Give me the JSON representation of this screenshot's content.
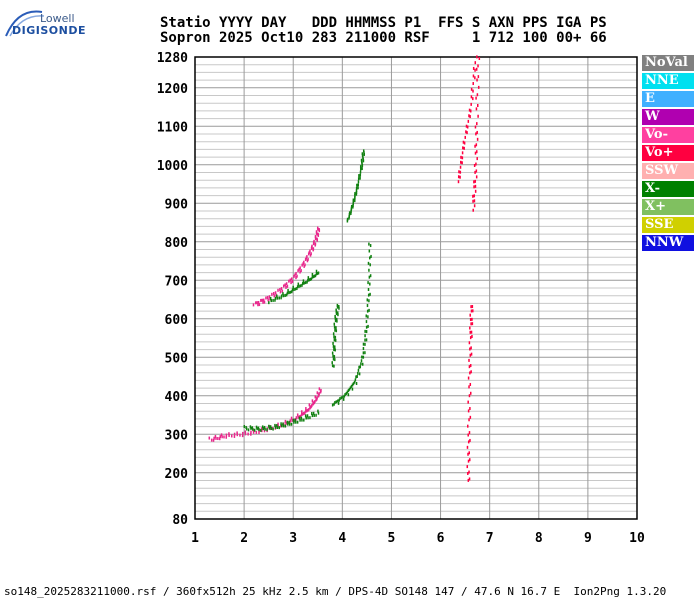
{
  "logo": {
    "top": "Lowell",
    "main": "DIGISONDE"
  },
  "header": {
    "line1": "Statio YYYY DAY   DDD HHMMSS P1  FFS S AXN PPS IGA PS",
    "line2": "Sopron 2025 Oct10 283 211000 RSF     1 712 100 00+ 66"
  },
  "legend": [
    {
      "label": "NoVal",
      "color": "#808080"
    },
    {
      "label": "NNE",
      "color": "#00e0f0"
    },
    {
      "label": "E",
      "color": "#40b0ff"
    },
    {
      "label": "W",
      "color": "#b000b0"
    },
    {
      "label": "Vo-",
      "color": "#ff40a0"
    },
    {
      "label": "Vo+",
      "color": "#ff0040"
    },
    {
      "label": "SSW",
      "color": "#ffb0b0"
    },
    {
      "label": "X-",
      "color": "#008000"
    },
    {
      "label": "X+",
      "color": "#80c060"
    },
    {
      "label": "SSE",
      "color": "#d0d000"
    },
    {
      "label": "NNW",
      "color": "#1010e0"
    }
  ],
  "footer": "so148_2025283211000.rsf / 360fx512h 25 kHz 2.5 km / DPS-4D SO148 147 / 47.6 N 16.7 E  Ion2Png 1.3.20",
  "chart_data": {
    "type": "scatter",
    "xlim": [
      1,
      10
    ],
    "ylim": [
      80,
      1280
    ],
    "xticks": [
      1,
      2,
      3,
      4,
      5,
      6,
      7,
      8,
      9,
      10
    ],
    "yticks": [
      80,
      200,
      300,
      400,
      500,
      600,
      700,
      800,
      900,
      1000,
      1100,
      1200,
      1280
    ],
    "grid": true,
    "series": [
      {
        "name": "Vo-",
        "color": "#e8288c",
        "traces": [
          [
            [
              1.3,
              290
            ],
            [
              1.6,
              300
            ],
            [
              2.0,
              305
            ],
            [
              2.4,
              315
            ],
            [
              2.8,
              330
            ],
            [
              3.1,
              350
            ],
            [
              3.3,
              370
            ],
            [
              3.45,
              395
            ],
            [
              3.55,
              420
            ]
          ],
          [
            [
              2.2,
              640
            ],
            [
              2.45,
              655
            ],
            [
              2.75,
              680
            ],
            [
              3.0,
              710
            ],
            [
              3.2,
              745
            ],
            [
              3.35,
              780
            ],
            [
              3.45,
              810
            ],
            [
              3.5,
              840
            ]
          ]
        ]
      },
      {
        "name": "X-",
        "color": "#108010",
        "traces": [
          [
            [
              2.0,
              320
            ],
            [
              2.3,
              318
            ],
            [
              2.6,
              322
            ],
            [
              2.9,
              332
            ],
            [
              3.2,
              345
            ],
            [
              3.5,
              360
            ]
          ],
          [
            [
              3.8,
              380
            ],
            [
              4.05,
              405
            ],
            [
              4.25,
              440
            ],
            [
              4.4,
              500
            ],
            [
              4.48,
              580
            ],
            [
              4.53,
              680
            ],
            [
              4.55,
              800
            ]
          ],
          [
            [
              2.5,
              650
            ],
            [
              2.8,
              665
            ],
            [
              3.05,
              685
            ],
            [
              3.3,
              705
            ],
            [
              3.5,
              725
            ]
          ],
          [
            [
              3.8,
              480
            ],
            [
              3.82,
              540
            ],
            [
              3.85,
              600
            ],
            [
              3.9,
              640
            ]
          ],
          [
            [
              4.1,
              860
            ],
            [
              4.2,
              900
            ],
            [
              4.28,
              940
            ],
            [
              4.38,
              1000
            ],
            [
              4.42,
              1040
            ]
          ]
        ]
      },
      {
        "name": "Vo+",
        "color": "#ff0040",
        "traces": [
          [
            [
              6.55,
              180
            ],
            [
              6.56,
              300
            ],
            [
              6.58,
              450
            ],
            [
              6.6,
              560
            ],
            [
              6.62,
              640
            ]
          ],
          [
            [
              6.35,
              960
            ],
            [
              6.45,
              1050
            ],
            [
              6.6,
              1150
            ],
            [
              6.7,
              1280
            ]
          ],
          [
            [
              6.65,
              890
            ],
            [
              6.7,
              980
            ],
            [
              6.72,
              1100
            ],
            [
              6.75,
              1280
            ]
          ]
        ]
      }
    ]
  }
}
